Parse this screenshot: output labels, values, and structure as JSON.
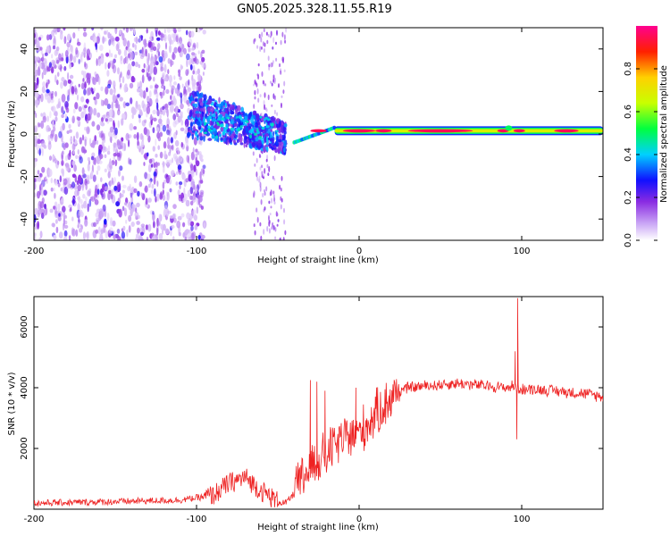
{
  "title": "GN05.2025.328.11.55.R19",
  "colors": {
    "snr_line": "#ee2222",
    "axis": "#000000",
    "spectrum_low": "#8a2be2",
    "spectrum_high": "#ff0000"
  },
  "chart_data": [
    {
      "type": "heatmap",
      "name": "spectrogram",
      "xlabel": "Height of straight line (km)",
      "ylabel": "Frequency (Hz)",
      "xlim": [
        -200,
        150
      ],
      "ylim": [
        -50,
        50
      ],
      "x_ticks": [
        -200,
        -100,
        0,
        100
      ],
      "x_tick_labels": [
        "-200",
        "-100",
        "0",
        "100"
      ],
      "y_ticks": [
        -40,
        -20,
        0,
        20,
        40
      ],
      "y_tick_labels": [
        "-40",
        "-20",
        "0",
        "20",
        "40"
      ],
      "description_regions": [
        {
          "x_range": [
            -200,
            -95
          ],
          "freq_range": [
            -50,
            50
          ],
          "amplitude": 0.15,
          "pattern": "noise"
        },
        {
          "x_range": [
            -105,
            -45
          ],
          "freq_range": [
            -15,
            20
          ],
          "amplitude": 0.3,
          "pattern": "drift"
        },
        {
          "x_range": [
            -40,
            -15
          ],
          "freq_range": [
            -4,
            3
          ],
          "amplitude": 0.45,
          "pattern": "line"
        },
        {
          "x_range": [
            -15,
            150
          ],
          "freq_range": [
            0,
            3
          ],
          "amplitude": 0.95,
          "pattern": "carrier"
        }
      ],
      "carrier_freq_hz": 1.5,
      "colorbar": {
        "label": "Normalized spectral amplitude",
        "range": [
          0,
          1
        ],
        "ticks": [
          0.0,
          0.2,
          0.4,
          0.6,
          0.8
        ],
        "tick_labels": [
          "0.0",
          "0.2",
          "0.4",
          "0.6",
          "0.8"
        ]
      }
    },
    {
      "type": "line",
      "name": "snr",
      "xlabel": "Height of straight line (km)",
      "ylabel": "SNR (10 * v/v)",
      "xlim": [
        -200,
        150
      ],
      "ylim": [
        0,
        7000
      ],
      "x_ticks": [
        -200,
        -100,
        0,
        100
      ],
      "x_tick_labels": [
        "-200",
        "-100",
        "0",
        "100"
      ],
      "y_ticks": [
        2000,
        4000,
        6000
      ],
      "y_tick_labels": [
        "2000",
        "4000",
        "6000"
      ],
      "series": [
        {
          "name": "SNR",
          "x": [
            -200,
            -150,
            -110,
            -90,
            -80,
            -70,
            -60,
            -50,
            -45,
            -40,
            -35,
            -30,
            -25,
            -20,
            -15,
            -10,
            -5,
            0,
            5,
            10,
            15,
            20,
            25,
            30,
            40,
            50,
            60,
            70,
            80,
            90,
            95,
            97,
            98,
            100,
            110,
            120,
            130,
            140,
            150
          ],
          "values": [
            200,
            250,
            300,
            450,
            850,
            1050,
            600,
            250,
            200,
            500,
            1000,
            1400,
            1600,
            1800,
            2100,
            2300,
            2400,
            2500,
            2800,
            3100,
            3400,
            3700,
            3900,
            4000,
            4050,
            4100,
            4150,
            4100,
            4050,
            4000,
            4050,
            4000,
            3950,
            3950,
            3950,
            3900,
            3850,
            3800,
            3700
          ],
          "spikes": [
            {
              "x": -30,
              "value": 4250
            },
            {
              "x": -26,
              "value": 4200
            },
            {
              "x": -21,
              "value": 3900
            },
            {
              "x": -2,
              "value": 4000
            },
            {
              "x": 96,
              "value": 5200
            },
            {
              "x": 97.5,
              "value": 6950
            },
            {
              "x": 97,
              "value": 2300
            }
          ]
        }
      ]
    }
  ]
}
